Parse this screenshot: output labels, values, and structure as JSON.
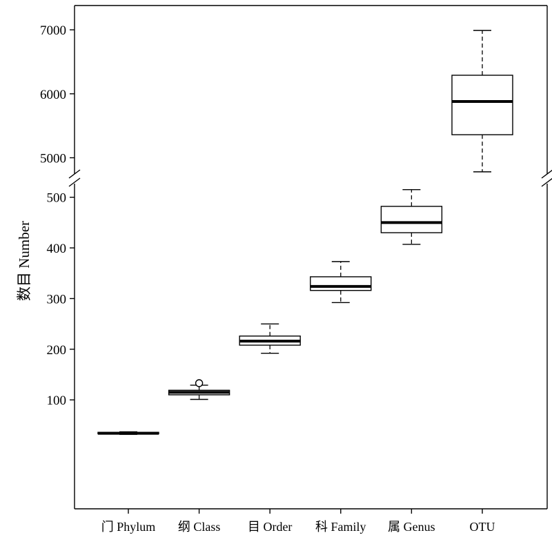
{
  "chart_data": {
    "type": "boxplot",
    "title": "",
    "xlabel": "",
    "ylabel": "数目 Number",
    "axis_break": true,
    "upper_segment": {
      "ylim": [
        4660,
        7380
      ],
      "ticks": [
        5000,
        6000,
        7000
      ]
    },
    "lower_segment": {
      "ylim": [
        -115,
        535
      ],
      "ticks": [
        100,
        200,
        300,
        400,
        500
      ]
    },
    "categories": [
      "门 Phylum",
      "纲 Class",
      "目 Order",
      "科 Family",
      "属 Genus",
      "OTU"
    ],
    "boxes": [
      {
        "category": "门 Phylum",
        "min": 32,
        "q1": 33,
        "median": 34,
        "q3": 36,
        "max": 37,
        "outliers": []
      },
      {
        "category": "纲 Class",
        "min": 101,
        "q1": 110,
        "median": 115,
        "q3": 119,
        "max": 129,
        "outliers": [
          133
        ]
      },
      {
        "category": "目 Order",
        "min": 192,
        "q1": 208,
        "median": 216,
        "q3": 226,
        "max": 250,
        "outliers": []
      },
      {
        "category": "科 Family",
        "min": 292,
        "q1": 316,
        "median": 324,
        "q3": 343,
        "max": 373,
        "outliers": []
      },
      {
        "category": "属 Genus",
        "min": 407,
        "q1": 430,
        "median": 450,
        "q3": 482,
        "max": 515,
        "outliers": []
      },
      {
        "category": "OTU",
        "min": 4780,
        "q1": 5360,
        "median": 5880,
        "q3": 6290,
        "max": 6990,
        "outliers": []
      }
    ]
  }
}
